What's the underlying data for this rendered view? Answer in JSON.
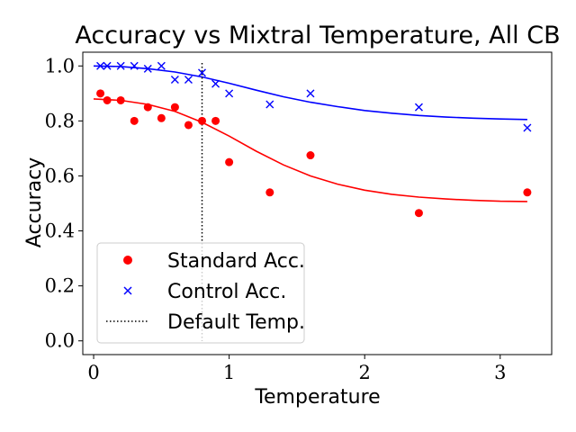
{
  "chart_data": {
    "type": "scatter",
    "title": "Accuracy vs Mixtral Temperature, All CB",
    "xlabel": "Temperature",
    "ylabel": "Accuracy",
    "xlim": [
      -0.08,
      3.38
    ],
    "ylim": [
      -0.05,
      1.05
    ],
    "xticks": [
      0,
      1,
      2,
      3
    ],
    "xtick_labels": [
      "0",
      "1",
      "2",
      "3"
    ],
    "yticks": [
      0.0,
      0.2,
      0.4,
      0.6,
      0.8,
      1.0
    ],
    "ytick_labels": [
      "0.0",
      "0.2",
      "0.4",
      "0.6",
      "0.8",
      "1.0"
    ],
    "grid": false,
    "legend_position": "lower-left",
    "series": [
      {
        "name": "Standard Acc.",
        "marker": "circle",
        "color": "#ff0000",
        "x": [
          0.05,
          0.1,
          0.2,
          0.3,
          0.4,
          0.5,
          0.6,
          0.7,
          0.8,
          0.9,
          1.0,
          1.3,
          1.6,
          2.4,
          3.2
        ],
        "y": [
          0.9,
          0.875,
          0.875,
          0.8,
          0.85,
          0.81,
          0.85,
          0.785,
          0.8,
          0.8,
          0.65,
          0.54,
          0.675,
          0.465,
          0.54
        ]
      },
      {
        "name": "Control Acc.",
        "marker": "x",
        "color": "#0000ff",
        "x": [
          0.05,
          0.1,
          0.2,
          0.3,
          0.4,
          0.5,
          0.6,
          0.7,
          0.8,
          0.9,
          1.0,
          1.3,
          1.6,
          2.4,
          3.2
        ],
        "y": [
          1.0,
          1.0,
          1.0,
          1.0,
          0.99,
          1.0,
          0.95,
          0.95,
          0.975,
          0.935,
          0.9,
          0.86,
          0.9,
          0.85,
          0.775
        ]
      }
    ],
    "fit_curves": [
      {
        "series": "Standard Acc.",
        "color": "#ff0000",
        "x": [
          0.0,
          0.2,
          0.4,
          0.6,
          0.8,
          1.0,
          1.2,
          1.4,
          1.6,
          1.8,
          2.0,
          2.2,
          2.4,
          2.6,
          2.8,
          3.0,
          3.2
        ],
        "y": [
          0.88,
          0.875,
          0.86,
          0.835,
          0.795,
          0.745,
          0.69,
          0.64,
          0.6,
          0.57,
          0.548,
          0.533,
          0.523,
          0.516,
          0.511,
          0.508,
          0.507
        ]
      },
      {
        "series": "Control Acc.",
        "color": "#0000ff",
        "x": [
          0.0,
          0.2,
          0.4,
          0.6,
          0.8,
          1.0,
          1.2,
          1.4,
          1.6,
          1.8,
          2.0,
          2.2,
          2.4,
          2.6,
          2.8,
          3.0,
          3.2
        ],
        "y": [
          1.0,
          0.998,
          0.99,
          0.978,
          0.96,
          0.937,
          0.912,
          0.888,
          0.868,
          0.852,
          0.838,
          0.828,
          0.82,
          0.814,
          0.81,
          0.807,
          0.805
        ]
      }
    ],
    "reference_lines": [
      {
        "name": "Default Temp.",
        "orientation": "vertical",
        "x": 0.8,
        "style": "dotted",
        "color": "#000000"
      }
    ]
  }
}
